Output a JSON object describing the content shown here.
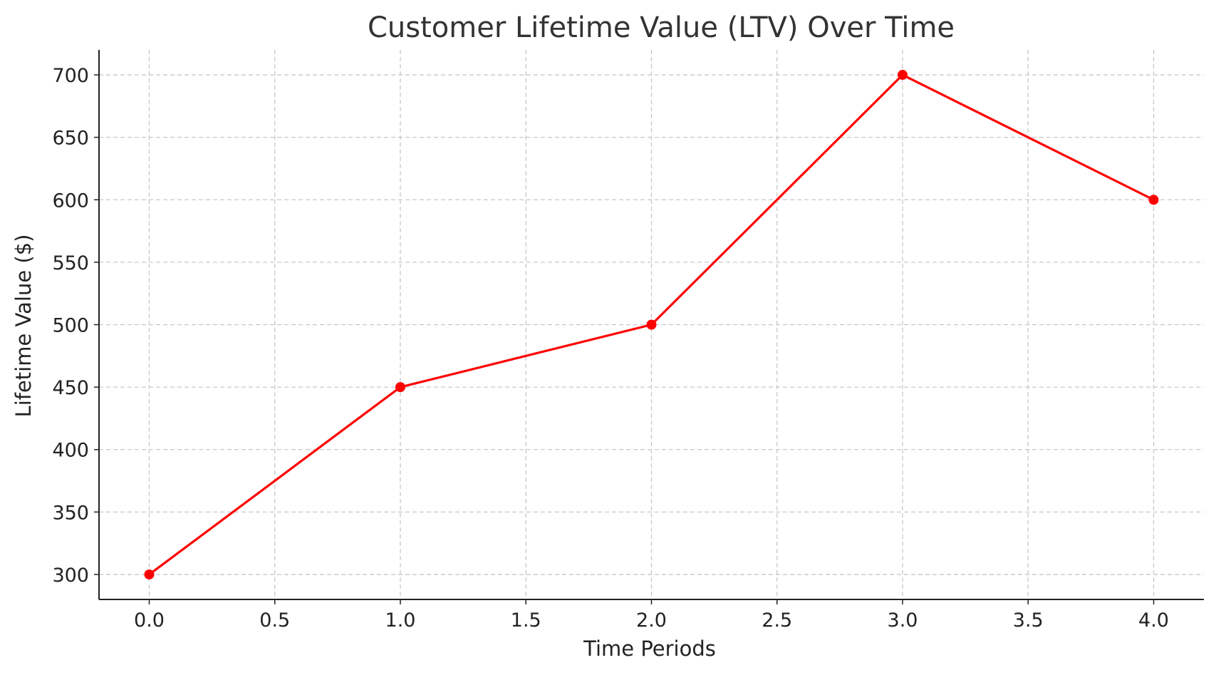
{
  "chart_data": {
    "type": "line",
    "title": "Customer Lifetime Value (LTV) Over Time",
    "xlabel": "Time Periods",
    "ylabel": "Lifetime Value ($)",
    "xlim": [
      -0.2,
      4.2
    ],
    "ylim": [
      280,
      720
    ],
    "x_ticks": [
      0.0,
      0.5,
      1.0,
      1.5,
      2.0,
      2.5,
      3.0,
      3.5,
      4.0
    ],
    "x_tick_labels": [
      "0.0",
      "0.5",
      "1.0",
      "1.5",
      "2.0",
      "2.5",
      "3.0",
      "3.5",
      "4.0"
    ],
    "y_ticks": [
      300,
      350,
      400,
      450,
      500,
      550,
      600,
      650,
      700
    ],
    "y_tick_labels": [
      "300",
      "350",
      "400",
      "450",
      "500",
      "550",
      "600",
      "650",
      "700"
    ],
    "grid": true,
    "series": [
      {
        "color": "#ff0000",
        "marker": "circle",
        "x": [
          0,
          1,
          2,
          3,
          4
        ],
        "y": [
          300,
          450,
          500,
          700,
          600
        ]
      }
    ]
  }
}
